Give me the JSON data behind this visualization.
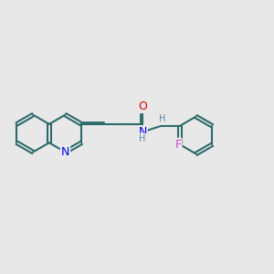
{
  "bg_color": "#e8e8e8",
  "bond_color": "#2d6b6b",
  "bond_width": 1.5,
  "atom_colors": {
    "N": "#0000ee",
    "O": "#ee0000",
    "F": "#cc44cc",
    "H": "#5588aa",
    "C": "#2d6b6b"
  },
  "font_size": 9,
  "fig_size": [
    3.0,
    3.0
  ],
  "dpi": 100
}
